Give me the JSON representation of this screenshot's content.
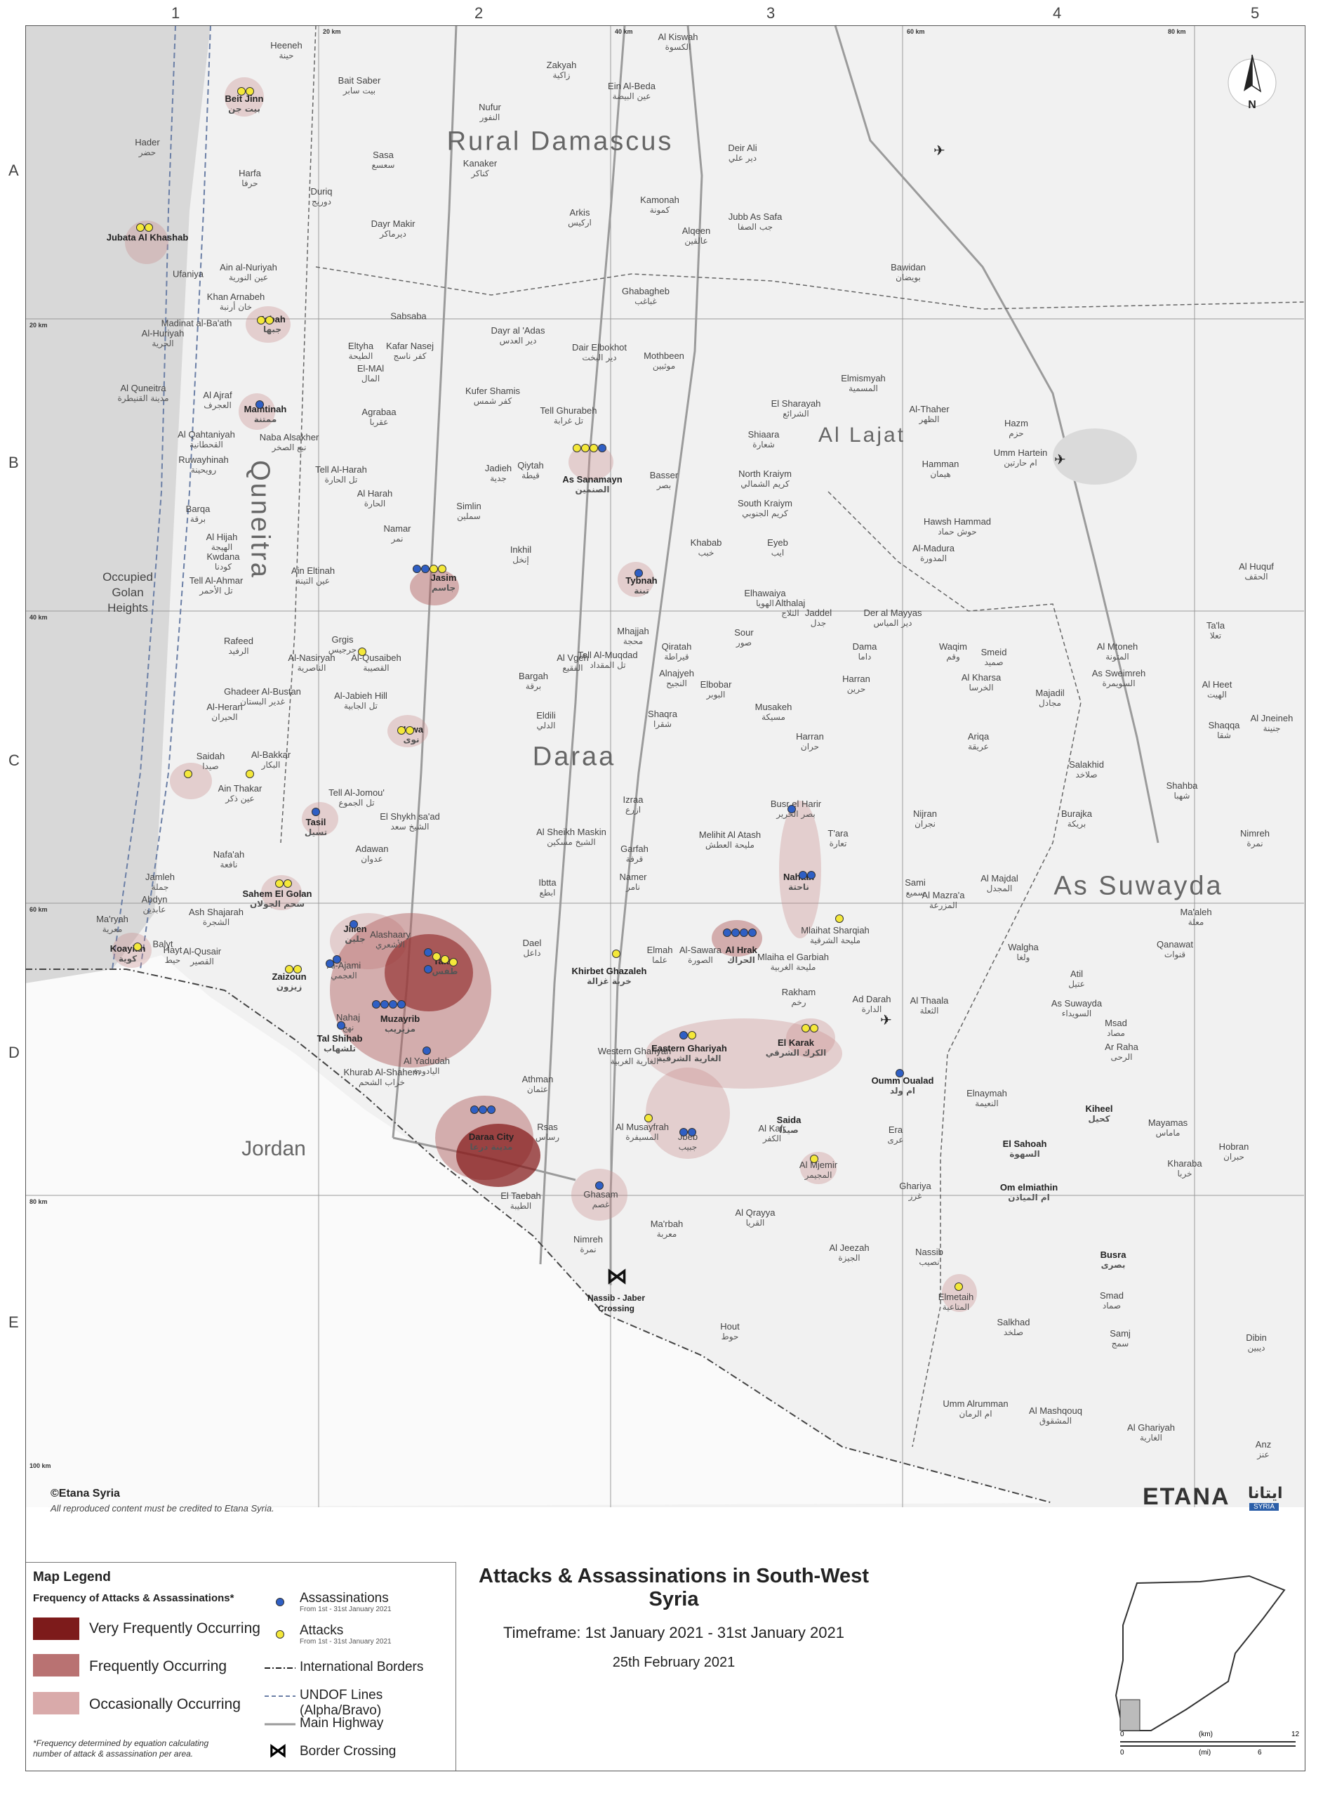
{
  "map": {
    "grid_columns": [
      "1",
      "2",
      "3",
      "4",
      "5"
    ],
    "grid_rows": [
      "A",
      "B",
      "C",
      "D",
      "E"
    ],
    "km_labels": [
      "20 km",
      "40 km",
      "60 km",
      "80 km",
      "20 km",
      "40 km",
      "60 km",
      "80 km",
      "100 km"
    ],
    "regions": [
      "Rural Damascus",
      "Quneitra",
      "Daraa",
      "As Suwayda",
      "Al Lajat",
      "Jordan"
    ],
    "golan": "Occupied Golan Heights",
    "crossing": {
      "name": "Nassib - Jaber Crossing"
    },
    "places": [
      {
        "en": "Beit Jinn",
        "ar": "بيت جن",
        "hl": true
      },
      {
        "en": "Heeneh",
        "ar": "حينة"
      },
      {
        "en": "Bait Saber",
        "ar": "بيت سابر"
      },
      {
        "en": "Zakyah",
        "ar": "زاكية"
      },
      {
        "en": "Al Kiswah",
        "ar": "الكسوة"
      },
      {
        "en": "Ein Al-Beda",
        "ar": "عين البيضة"
      },
      {
        "en": "Nufur",
        "ar": "النفور"
      },
      {
        "en": "Hader",
        "ar": "حضر"
      },
      {
        "en": "Sasa",
        "ar": "سعسع"
      },
      {
        "en": "Kanaker",
        "ar": "كناكر"
      },
      {
        "en": "Deir Ali",
        "ar": "دير علي"
      },
      {
        "en": "Harfa",
        "ar": "حرفا"
      },
      {
        "en": "Duriq",
        "ar": "دوريج"
      },
      {
        "en": "Kamonah",
        "ar": "كمونة"
      },
      {
        "en": "Jubata Al Khashab",
        "ar": "",
        "hl": true
      },
      {
        "en": "Dayr Makir",
        "ar": "ديرماكر"
      },
      {
        "en": "Arkis",
        "ar": "اركيس"
      },
      {
        "en": "Jubb As Safa",
        "ar": "جب الصفا"
      },
      {
        "en": "Alqeen",
        "ar": "عالقين"
      },
      {
        "en": "Ain al-Nuriyah",
        "ar": "عين النورية"
      },
      {
        "en": "Ufaniya",
        "ar": ""
      },
      {
        "en": "Bawidan",
        "ar": "بويضان"
      },
      {
        "en": "Ghabagheb",
        "ar": "غباغب"
      },
      {
        "en": "Khan Arnabeh",
        "ar": "خان أرنبة"
      },
      {
        "en": "Madinat al-Ba'ath",
        "ar": ""
      },
      {
        "en": "Jabah",
        "ar": "جبها",
        "hl": true
      },
      {
        "en": "Sabsaba",
        "ar": ""
      },
      {
        "en": "Al-Huriyah",
        "ar": "الحرية"
      },
      {
        "en": "Eltyha",
        "ar": "الطيحة"
      },
      {
        "en": "Kafar Nasej",
        "ar": "كفر ناسج"
      },
      {
        "en": "El-MAl",
        "ar": "المال"
      },
      {
        "en": "Dayr al 'Adas",
        "ar": "دير العدس"
      },
      {
        "en": "Dair Elbokhot",
        "ar": "دير البخت"
      },
      {
        "en": "Mothbeen",
        "ar": "موثبين"
      },
      {
        "en": "Al Quneitra",
        "ar": "مدينة القنيطرة"
      },
      {
        "en": "Kufer Shamis",
        "ar": "كفر شمس"
      },
      {
        "en": "Elmismyah",
        "ar": "المسمية"
      },
      {
        "en": "Al Ajraf",
        "ar": "العجرف"
      },
      {
        "en": "Mamtinah",
        "ar": "ممتنة",
        "hl": true
      },
      {
        "en": "Agrabaa",
        "ar": "عقربا"
      },
      {
        "en": "Tell Ghurabeh",
        "ar": "تل غرابة"
      },
      {
        "en": "El Sharayah",
        "ar": "الشرائع"
      },
      {
        "en": "Al-Thaher",
        "ar": "الظهر"
      },
      {
        "en": "Hazm",
        "ar": "حزم"
      },
      {
        "en": "Al Qahtaniyah",
        "ar": "القحطانية"
      },
      {
        "en": "Naba Alsakher",
        "ar": "نبع الصخر"
      },
      {
        "en": "Shiaara",
        "ar": "شعارة"
      },
      {
        "en": "Umm Hartein",
        "ar": "ام حارتين"
      },
      {
        "en": "Ruwayhinah",
        "ar": "رويحينة"
      },
      {
        "en": "Tell Al-Harah",
        "ar": "تل الحارة"
      },
      {
        "en": "Qiytah",
        "ar": "قيطة"
      },
      {
        "en": "Jadieh",
        "ar": "جدية"
      },
      {
        "en": "As Sanamayn",
        "ar": "الصنمين",
        "hl": true
      },
      {
        "en": "Basser",
        "ar": "بصر"
      },
      {
        "en": "North Kraiym",
        "ar": "كريم الشمالي"
      },
      {
        "en": "Hamman",
        "ar": "هيمان"
      },
      {
        "en": "Al Harah",
        "ar": "الحارة"
      },
      {
        "en": "Barqa",
        "ar": "برقة"
      },
      {
        "en": "Simlin",
        "ar": "سملين"
      },
      {
        "en": "South Kraiym",
        "ar": "كريم الجنوبي"
      },
      {
        "en": "Hawsh Hammad",
        "ar": "حوش حماد"
      },
      {
        "en": "Namar",
        "ar": "نمر"
      },
      {
        "en": "Al Hijah",
        "ar": "الهيجة"
      },
      {
        "en": "Inkhil",
        "ar": "إنخل"
      },
      {
        "en": "Khabab",
        "ar": "خبب"
      },
      {
        "en": "Eyeb",
        "ar": "ايب"
      },
      {
        "en": "Al-Madura",
        "ar": "المدورة"
      },
      {
        "en": "Kwdana",
        "ar": "كودنا"
      },
      {
        "en": "Ain Eltinah",
        "ar": "عين التينة"
      },
      {
        "en": "Jasim",
        "ar": "جاسم",
        "hl": true
      },
      {
        "en": "Tybnah",
        "ar": "تبنة",
        "hl": true
      },
      {
        "en": "Tell Al-Ahmar",
        "ar": "تل الأحمر"
      },
      {
        "en": "Elhawaiya",
        "ar": "الهويا"
      },
      {
        "en": "Althalaj",
        "ar": "الثلاج"
      },
      {
        "en": "Jaddel",
        "ar": "جدل"
      },
      {
        "en": "Der al Mayyas",
        "ar": "دير المياس"
      },
      {
        "en": "Al Huquf",
        "ar": "الحقف"
      },
      {
        "en": "Ta'la",
        "ar": "تعلا"
      },
      {
        "en": "Grgis",
        "ar": "جرجيس"
      },
      {
        "en": "Rafeed",
        "ar": "الرفيد"
      },
      {
        "en": "Mhajjah",
        "ar": "محجة"
      },
      {
        "en": "Sour",
        "ar": "صور"
      },
      {
        "en": "Al-Qusaibeh",
        "ar": "القصيبة"
      },
      {
        "en": "Al Vgeh",
        "ar": "الفقيع"
      },
      {
        "en": "Tell Al-Muqdad",
        "ar": "تل المقداد"
      },
      {
        "en": "Qiratah",
        "ar": "قيراطة"
      },
      {
        "en": "Dama",
        "ar": "داما"
      },
      {
        "en": "Waqim",
        "ar": "وقم"
      },
      {
        "en": "Smeid",
        "ar": "صميد"
      },
      {
        "en": "Al Mtoneh",
        "ar": "المتونة"
      },
      {
        "en": "Al-Nasiryah",
        "ar": "الناصرية"
      },
      {
        "en": "Alnajyeh",
        "ar": "النجيح"
      },
      {
        "en": "Elbobar",
        "ar": "البوبر"
      },
      {
        "en": "Bargah",
        "ar": "برقة"
      },
      {
        "en": "Harran",
        "ar": "حرين"
      },
      {
        "en": "Al Kharsa",
        "ar": "الخرسا"
      },
      {
        "en": "As Sweimreh",
        "ar": "السويمرة"
      },
      {
        "en": "Ghadeer Al-Bustan",
        "ar": "غدير البستان"
      },
      {
        "en": "Al-Jabieh Hill",
        "ar": "تل الجابية"
      },
      {
        "en": "Majadil",
        "ar": "مجادل"
      },
      {
        "en": "Al Heet",
        "ar": "الهيت"
      },
      {
        "en": "Al-Heran",
        "ar": "الحيران"
      },
      {
        "en": "Eldili",
        "ar": "الدلي"
      },
      {
        "en": "Shaqra",
        "ar": "شقرا"
      },
      {
        "en": "Musakeh",
        "ar": "مسيكة"
      },
      {
        "en": "Shaqqa",
        "ar": "شقا"
      },
      {
        "en": "Al Jneineh",
        "ar": "جنينة"
      },
      {
        "en": "Nawa",
        "ar": "نوى",
        "hl": true
      },
      {
        "en": "Ariqa",
        "ar": "عريقة"
      },
      {
        "en": "Harran",
        "ar": "حران"
      },
      {
        "en": "Saidah",
        "ar": "صيدا"
      },
      {
        "en": "Al-Bakkar",
        "ar": "البكار"
      },
      {
        "en": "Salakhid",
        "ar": "صلاخد"
      },
      {
        "en": "Ain Thakar",
        "ar": "عين ذكر"
      },
      {
        "en": "Tell Al-Jomou'",
        "ar": "تل الجموع"
      },
      {
        "en": "Shahba",
        "ar": "شهبا"
      },
      {
        "en": "Izraa",
        "ar": "ازرع"
      },
      {
        "en": "Busr el Harir",
        "ar": "بصر الحرير"
      },
      {
        "en": "Nijran",
        "ar": "نجران"
      },
      {
        "en": "Burajka",
        "ar": "بريكة"
      },
      {
        "en": "Tasil",
        "ar": "تسيل",
        "hl": true
      },
      {
        "en": "El Shykh sa'ad",
        "ar": "الشيخ سعد"
      },
      {
        "en": "Al Sheikh Maskin",
        "ar": "الشيخ مسكين"
      },
      {
        "en": "Melihit Al Atash",
        "ar": "مليحة العطش"
      },
      {
        "en": "T'ara",
        "ar": "تعارة"
      },
      {
        "en": "Nimreh",
        "ar": "نمرة"
      },
      {
        "en": "Adawan",
        "ar": "عدوان"
      },
      {
        "en": "Garfah",
        "ar": "قرفة"
      },
      {
        "en": "Nafa'ah",
        "ar": "نافعة"
      },
      {
        "en": "Namer",
        "ar": "نامر"
      },
      {
        "en": "Nahtah",
        "ar": "ناحتة",
        "hl": true
      },
      {
        "en": "Al Majdal",
        "ar": "المجدل"
      },
      {
        "en": "Jamleh",
        "ar": "جملة"
      },
      {
        "en": "Ibtta",
        "ar": "ابطع"
      },
      {
        "en": "Sami",
        "ar": "سميع"
      },
      {
        "en": "Al Mazra'a",
        "ar": "المزرعة"
      },
      {
        "en": "Sahem El Golan",
        "ar": "سحم الجولان",
        "hl": true
      },
      {
        "en": "Abdyn",
        "ar": "عابدين"
      },
      {
        "en": "Ash Shajarah",
        "ar": "الشجرة"
      },
      {
        "en": "Ma'ryah",
        "ar": "معرية"
      },
      {
        "en": "Alashaary",
        "ar": "الأشعري"
      },
      {
        "en": "Mlaihat Sharqiah",
        "ar": "مليحة الشرقية"
      },
      {
        "en": "Ma'aleh",
        "ar": "معلة"
      },
      {
        "en": "Jillen",
        "ar": "جلين",
        "hl": true
      },
      {
        "en": "Dael",
        "ar": "داعل"
      },
      {
        "en": "Elmah",
        "ar": "علما"
      },
      {
        "en": "Al-Sawara",
        "ar": "الصورة"
      },
      {
        "en": "Al Hrak",
        "ar": "الحراك",
        "hl": true
      },
      {
        "en": "Mlaiha el Garbiah",
        "ar": "مليحة الغربية"
      },
      {
        "en": "Qanawat",
        "ar": "قنوات"
      },
      {
        "en": "Koayiah",
        "ar": "كوية",
        "hl": true
      },
      {
        "en": "Balyt",
        "ar": ""
      },
      {
        "en": "Hayt",
        "ar": "حيط"
      },
      {
        "en": "Al-Qusair",
        "ar": "القصير"
      },
      {
        "en": "Tafas",
        "ar": "طفس",
        "hl": true
      },
      {
        "en": "Khirbet Ghazaleh",
        "ar": "خربة غزالة",
        "hl": true
      },
      {
        "en": "Walgha",
        "ar": "ولغا"
      },
      {
        "en": "Atil",
        "ar": "عتيل"
      },
      {
        "en": "Al-Ajami",
        "ar": "العجمي"
      },
      {
        "en": "Zaizoun",
        "ar": "زيزون",
        "hl": true
      },
      {
        "en": "Muzayrib",
        "ar": "مزيريب",
        "hl": true
      },
      {
        "en": "Ad Darah",
        "ar": "الدارة"
      },
      {
        "en": "As Suwayda",
        "ar": "السويداء"
      },
      {
        "en": "Rakham",
        "ar": "رخم"
      },
      {
        "en": "Al Thaala",
        "ar": "الثعلة"
      },
      {
        "en": "Nahaj",
        "ar": "نهج"
      },
      {
        "en": "Tal Shihab",
        "ar": "تلشهاب",
        "hl": true
      },
      {
        "en": "Western Ghariyah",
        "ar": "الغارية الغربية"
      },
      {
        "en": "Eastern Ghariyah",
        "ar": "الغارية الشرقية",
        "hl": true
      },
      {
        "en": "El Karak",
        "ar": "الكرك الشرقي",
        "hl": true
      },
      {
        "en": "Msad",
        "ar": "مصاد"
      },
      {
        "en": "Al Yadudah",
        "ar": "اليادودة"
      },
      {
        "en": "Khurab Al-Shahem",
        "ar": "خراب الشحم"
      },
      {
        "en": "Ar Raha",
        "ar": "الرحى"
      },
      {
        "en": "Athman",
        "ar": "عثمان"
      },
      {
        "en": "Oumm Oualad",
        "ar": "ام ولد",
        "hl": true
      },
      {
        "en": "Daraa City",
        "ar": "مدينة درعا",
        "hl": true
      },
      {
        "en": "Elnaymah",
        "ar": "النعيمة"
      },
      {
        "en": "Rsas",
        "ar": "رساس"
      },
      {
        "en": "Saida",
        "ar": "صيدا",
        "hl": true
      },
      {
        "en": "Kiheel",
        "ar": "كحيل",
        "hl": true
      },
      {
        "en": "Al Musayfrah",
        "ar": "المسيفرة"
      },
      {
        "en": "Jbeb",
        "ar": "جبيب"
      },
      {
        "en": "Al Kafr",
        "ar": "الكفر"
      },
      {
        "en": "Era",
        "ar": "عرى"
      },
      {
        "en": "Mayamas",
        "ar": "ماماس"
      },
      {
        "en": "El Sahoah",
        "ar": "السهوة",
        "hl": true
      },
      {
        "en": "Hobran",
        "ar": "حبران"
      },
      {
        "en": "Al Mjemir",
        "ar": "المجيمر"
      },
      {
        "en": "Kharaba",
        "ar": "خربا"
      },
      {
        "en": "Om elmiathin",
        "ar": "ام المياذن",
        "hl": true
      },
      {
        "en": "Ghariya",
        "ar": "غرز"
      },
      {
        "en": "Ghasam",
        "ar": "غصم"
      },
      {
        "en": "El Taebah",
        "ar": "الطيبة"
      },
      {
        "en": "Al Jeezah",
        "ar": "الجيزة"
      },
      {
        "en": "Ma'rbah",
        "ar": "معربة"
      },
      {
        "en": "Al Qrayya",
        "ar": "القريا"
      },
      {
        "en": "Nassib",
        "ar": "نصيب"
      },
      {
        "en": "Busra",
        "ar": "بصرى",
        "hl": true
      },
      {
        "en": "Nimreh",
        "ar": "نمرة"
      },
      {
        "en": "Elmetaih",
        "ar": "المتاعية"
      },
      {
        "en": "Smad",
        "ar": "صماد"
      },
      {
        "en": "Hout",
        "ar": "حوط"
      },
      {
        "en": "Salkhad",
        "ar": "صلخد"
      },
      {
        "en": "Samj",
        "ar": "سمج"
      },
      {
        "en": "Dibin",
        "ar": "ديبين"
      },
      {
        "en": "Umm Alrumman",
        "ar": "ام الرمان"
      },
      {
        "en": "Al Mashqouq",
        "ar": "المشقوق"
      },
      {
        "en": "Al Ghariyah",
        "ar": "الغارية"
      },
      {
        "en": "Anz",
        "ar": "عنز"
      }
    ]
  },
  "credit": {
    "line1": "©Etana Syria",
    "line2": "All reproduced content must be credited to Etana Syria."
  },
  "brand": {
    "en": "ETANA",
    "ar": "ايتانا",
    "tag": "SYRIA"
  },
  "legend": {
    "title": "Map Legend",
    "subtitle": "Frequency of Attacks & Assassinations*",
    "levels": [
      "Very Frequently Occurring",
      "Frequently Occurring",
      "Occasionally Occurring"
    ],
    "assassinations": "Assassinations",
    "assassinations_note": "From 1st - 31st January 2021",
    "attacks": "Attacks",
    "attacks_note": "From 1st - 31st January 2021",
    "intl_borders": "International Borders",
    "undof": "UNDOF Lines (Alpha/Bravo)",
    "highway": "Main Highway",
    "crossing": "Border Crossing",
    "footnote1": "*Frequency determined by equation calculating",
    "footnote2": "number of attack & assassination per area.",
    "colors": {
      "very": "#7d1b1b",
      "frequent": "#b97272",
      "occasional": "#d9aaaa",
      "assassination": "#2f5fc4",
      "attack": "#f4e83a"
    }
  },
  "title": {
    "main": "Attacks & Assassinations in South-West Syria",
    "timeframe": "Timeframe: 1st January 2021 - 31st January 2021",
    "date": "25th February 2021"
  },
  "scale": {
    "km": "(km)",
    "mi": "(mi)",
    "km0": "0",
    "km12": "12",
    "mi0": "0",
    "mi6": "6"
  },
  "north": "N"
}
